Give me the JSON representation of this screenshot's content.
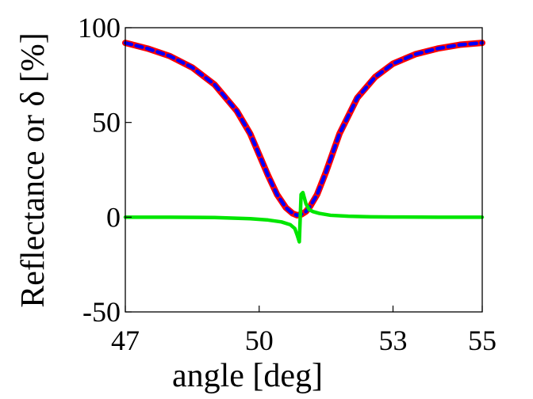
{
  "chart_data": {
    "type": "line",
    "xlabel": "angle [deg]",
    "ylabel": "Reflectance or δ [%]",
    "xlim": [
      47,
      55
    ],
    "ylim": [
      -50,
      100
    ],
    "xticks": [
      "47",
      "50",
      "53",
      "55"
    ],
    "yticks": [
      "-50",
      "0",
      "50",
      "100"
    ],
    "colors": {
      "red": "#ff0000",
      "blue": "#0000ff",
      "green": "#00e600"
    },
    "series": [
      {
        "key": "red",
        "color": "#ff0000",
        "dash": "solid",
        "x": [
          47,
          47.5,
          48,
          48.5,
          49,
          49.5,
          49.8,
          50,
          50.2,
          50.4,
          50.6,
          50.75,
          50.85,
          50.95,
          51.05,
          51.15,
          51.3,
          51.5,
          51.8,
          52.2,
          52.6,
          53,
          53.5,
          54,
          54.5,
          55
        ],
        "y": [
          92,
          89,
          85,
          79,
          70,
          56,
          44,
          33,
          22,
          12,
          5,
          2,
          1,
          1.5,
          3,
          6,
          12,
          24,
          44,
          63,
          74,
          81,
          86,
          89,
          91,
          92
        ]
      },
      {
        "key": "blue",
        "color": "#0000ff",
        "dash": "dashed",
        "x": [
          47,
          47.5,
          48,
          48.5,
          49,
          49.5,
          49.8,
          50,
          50.2,
          50.4,
          50.6,
          50.75,
          50.85,
          50.95,
          51.05,
          51.15,
          51.3,
          51.5,
          51.8,
          52.2,
          52.6,
          53,
          53.5,
          54,
          54.5,
          55
        ],
        "y": [
          92,
          89,
          85,
          79,
          70,
          56,
          44,
          33,
          22,
          12,
          5,
          2,
          1,
          1.5,
          3,
          6,
          12,
          24,
          44,
          63,
          74,
          81,
          86,
          89,
          91,
          92
        ]
      },
      {
        "key": "green",
        "color": "#00e600",
        "dash": "solid",
        "x": [
          47,
          48,
          49,
          49.8,
          50.2,
          50.5,
          50.7,
          50.8,
          50.86,
          50.9,
          50.94,
          50.98,
          51.05,
          51.12,
          51.2,
          51.35,
          51.6,
          52,
          52.5,
          53,
          54,
          55
        ],
        "y": [
          0,
          0,
          -0.2,
          -0.8,
          -1.5,
          -2.5,
          -4,
          -6,
          -10,
          -13,
          12,
          13,
          7,
          4,
          3,
          2,
          1,
          0.5,
          0.2,
          0.1,
          0,
          0
        ]
      }
    ]
  }
}
